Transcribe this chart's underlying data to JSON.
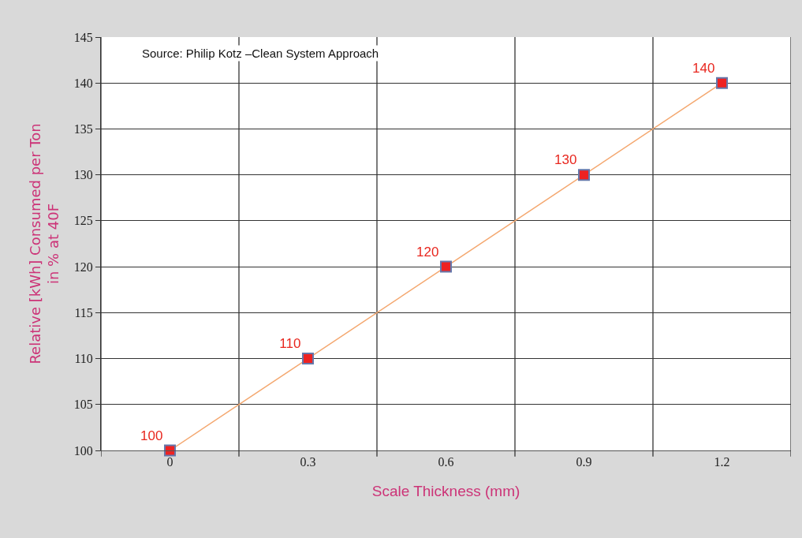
{
  "chart_data": {
    "type": "line",
    "xlabel": "Scale Thickness (mm)",
    "ylabel": "Relative [kWh] Consumed per Ton in % at 40F",
    "annotations": [
      "Source: Philip Kotz –Clean System Approach"
    ],
    "categories": [
      "0",
      "0.3",
      "0.6",
      "0.9",
      "1.2"
    ],
    "series": [
      {
        "color": "#f4a870",
        "values": [
          100,
          110,
          120,
          130,
          140
        ]
      }
    ],
    "ylim": [
      100,
      145
    ],
    "yticks": [
      100,
      105,
      110,
      115,
      120,
      125,
      130,
      135,
      140,
      145
    ],
    "grid": true,
    "marker": "square",
    "data_labels": true
  }
}
